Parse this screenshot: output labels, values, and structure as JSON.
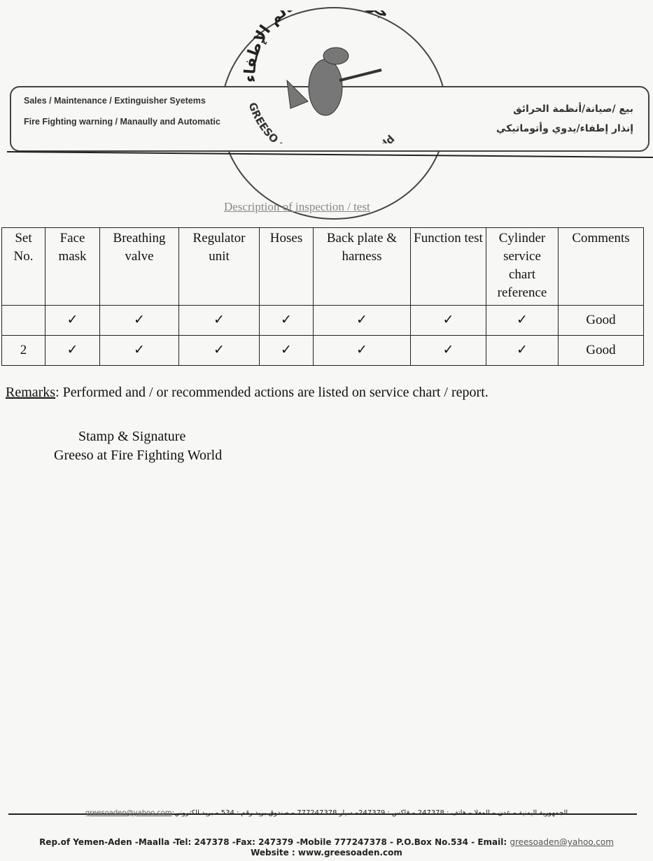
{
  "letterhead": {
    "logo_arabic": "جريسو في عالم الإطفاء",
    "logo_english": "GREESO at Fire Fighting World",
    "left_line1": "Sales / Maintenance / Extinguisher Syetems",
    "left_line2": "Fire Fighting warning / Manaully and Automatic",
    "right_line1": "بيع /صيانة/أنظمة الحرائق",
    "right_line2": "إنذار إطفاء/يدوي وأتوماتيكي"
  },
  "section_title": "Description of inspection / test",
  "table": {
    "headers": [
      "Set No.",
      "Face mask",
      "Breathing valve",
      "Regulator unit",
      "Hoses",
      "Back plate & harness",
      "Function test",
      "Cylinder service chart reference",
      "Comments"
    ],
    "rows": [
      [
        "",
        "✓",
        "✓",
        "✓",
        "✓",
        "✓",
        "✓",
        "✓",
        "Good"
      ],
      [
        "2",
        "✓",
        "✓",
        "✓",
        "✓",
        "✓",
        "✓",
        "✓",
        "Good"
      ]
    ]
  },
  "remarks": {
    "label": "Remarks",
    "text": ": Performed and / or recommended actions are listed on service chart / report."
  },
  "signature": {
    "line1": "Stamp & Signature",
    "line2": "Greeso at Fire Fighting World"
  },
  "footer": {
    "arabic_line": "الجمهورية اليمنية – عدن – المعلا – هاتف : 247378 – فاكس : 247379– سيار 777247378 – صندوق بريد رقم : 534 – بريد الكتروني:",
    "arabic_email": "greesoaden@yahoo.com",
    "english_line": "Rep.of Yemen-Aden -Maalla -Tel: 247378 -Fax: 247379 -Mobile 777247378 - P.O.Box No.534 - Email: ",
    "email": "greesoaden@yahoo.com",
    "website": "Website : www.greesoaden.com"
  }
}
